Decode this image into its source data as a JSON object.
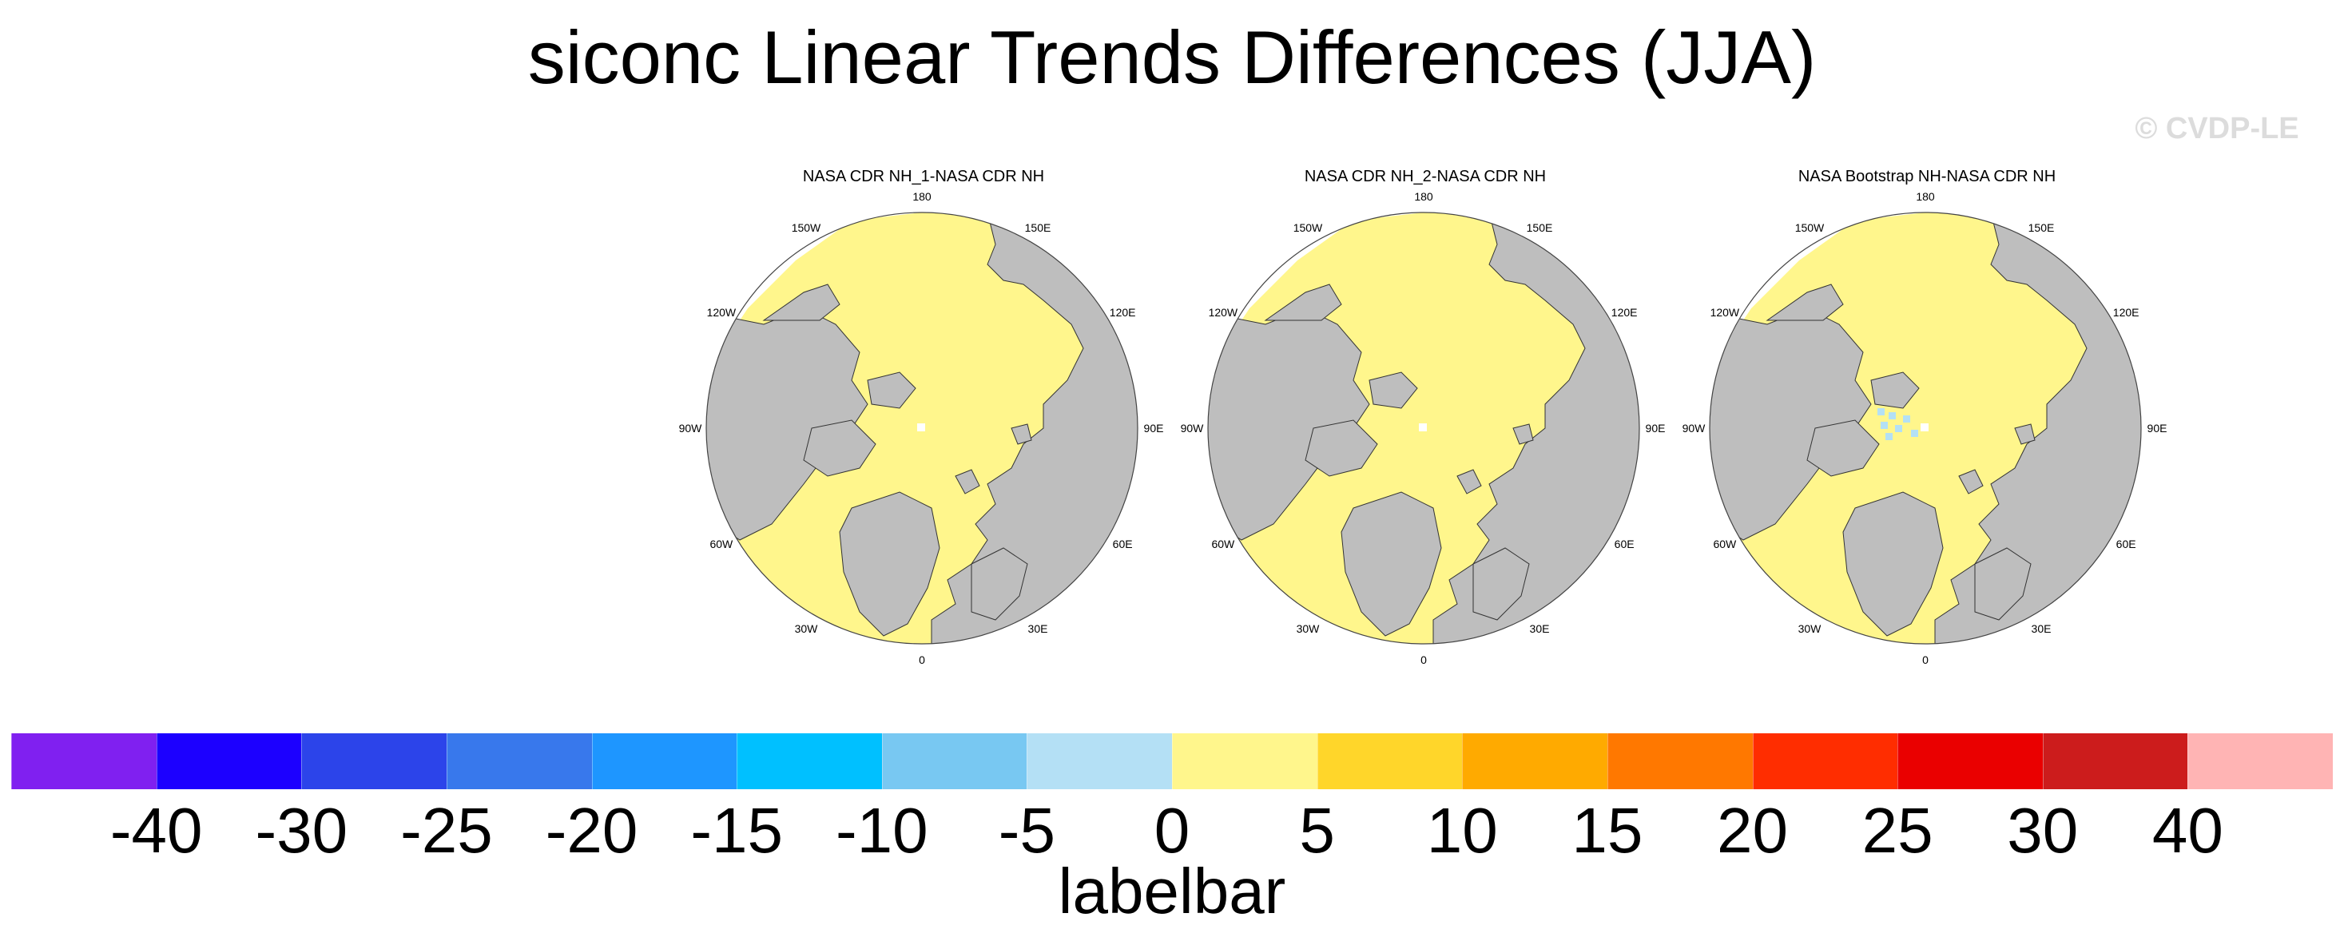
{
  "title": "siconc Linear Trends Differences (JJA)",
  "watermark": "© CVDP-LE",
  "panels": [
    {
      "title": "NASA CDR NH_1-NASA CDR NH"
    },
    {
      "title": "NASA CDR NH_2-NASA CDR NH"
    },
    {
      "title": "NASA Bootstrap NH-NASA CDR NH"
    }
  ],
  "longitude_labels": [
    "180",
    "150E",
    "120E",
    "90E",
    "60E",
    "30E",
    "0",
    "30W",
    "60W",
    "90W",
    "120W",
    "150W"
  ],
  "labelbar": {
    "colors": [
      "#8020f0",
      "#1c00ff",
      "#2c44ea",
      "#3878ec",
      "#1e96ff",
      "#00c0ff",
      "#78c8f2",
      "#b4e0f5",
      "#fff68c",
      "#ffd62a",
      "#ffaa00",
      "#ff7800",
      "#ff2d00",
      "#ea0000",
      "#cc1c1c",
      "#ffb4b4"
    ],
    "ticks": [
      "-40",
      "-30",
      "-25",
      "-20",
      "-15",
      "-10",
      "-5",
      "0",
      "5",
      "10",
      "15",
      "20",
      "25",
      "30",
      "40"
    ],
    "label": "labelbar"
  },
  "map_colors": {
    "land": "#bebebe",
    "ocean_diff": "#fff68c",
    "missing": "#ffffff",
    "ice_neg": "#b4e0f5"
  }
}
